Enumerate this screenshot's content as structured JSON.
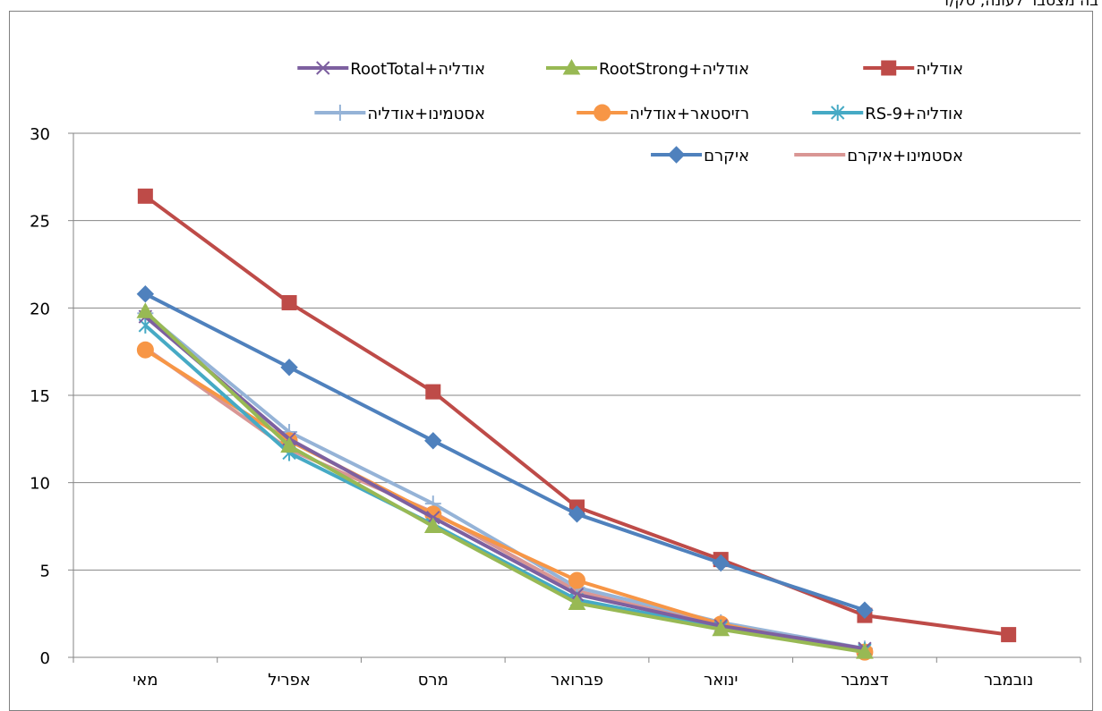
{
  "chart_data": {
    "type": "line",
    "title": "בה מצטבר לעונה, סק/ד",
    "categories": [
      "נובמבר",
      "דצמבר",
      "ינואר",
      "פברואר",
      "מרס",
      "אפריל",
      "מאי"
    ],
    "ylim": [
      0,
      30
    ],
    "yticks": [
      0,
      5,
      10,
      15,
      20,
      25,
      30
    ],
    "grid": true,
    "legend_position": "top",
    "series": [
      {
        "name": "אודליה",
        "color": "#be4b48",
        "marker": "square",
        "values": [
          1.3,
          2.4,
          5.6,
          8.6,
          15.2,
          20.3,
          26.4
        ]
      },
      {
        "name": "אודליה+RootStrong",
        "color": "#98b954",
        "marker": "triangle",
        "values": [
          null,
          0.3,
          1.6,
          3.1,
          7.5,
          12.1,
          19.8
        ]
      },
      {
        "name": "אודליה+RootTotal",
        "color": "#7d60a0",
        "marker": "x",
        "values": [
          null,
          0.5,
          1.8,
          3.6,
          8.0,
          12.5,
          19.5
        ]
      },
      {
        "name": "אודליה+RS-9",
        "color": "#46aac5",
        "marker": "star",
        "values": [
          null,
          0.4,
          1.7,
          3.3,
          7.6,
          11.7,
          19.0
        ]
      },
      {
        "name": "רזיסטאר+אודליה",
        "color": "#f79646",
        "marker": "circle",
        "values": [
          null,
          0.3,
          1.9,
          4.4,
          8.2,
          12.4,
          17.6
        ]
      },
      {
        "name": "אסטמינו+אודליה",
        "color": "#95b3d7",
        "marker": "plus",
        "values": [
          null,
          0.5,
          2.0,
          4.0,
          8.8,
          12.9,
          19.7
        ]
      },
      {
        "name": "אסטמינו+איקרם",
        "color": "#d99694",
        "marker": "none",
        "values": [
          null,
          0.4,
          1.8,
          3.8,
          8.3,
          11.9,
          17.7
        ]
      },
      {
        "name": "איקרם",
        "color": "#4f81bd",
        "marker": "diamond",
        "values": [
          null,
          2.7,
          5.4,
          8.2,
          12.4,
          16.6,
          20.8
        ]
      }
    ]
  }
}
